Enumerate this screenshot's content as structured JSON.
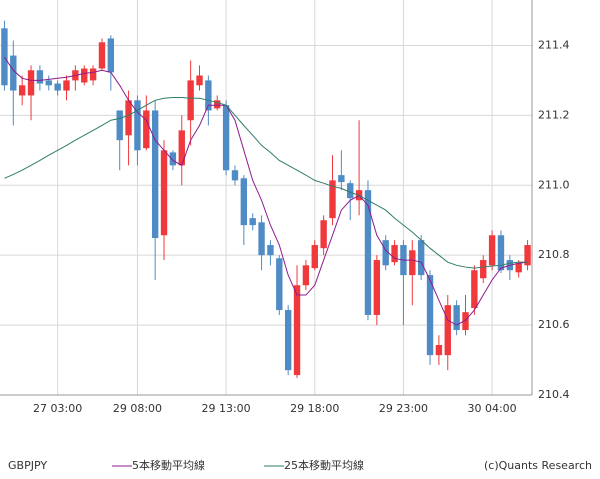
{
  "chart_data": {
    "type": "candlestick",
    "symbol": "GBPJPY",
    "credit": "(c)Quants Research",
    "categories": [
      null,
      null,
      null,
      null,
      null,
      null,
      "27 03:00",
      null,
      null,
      null,
      null,
      null,
      null,
      null,
      null,
      "29 08:00",
      null,
      null,
      null,
      null,
      null,
      null,
      null,
      null,
      null,
      "29 13:00",
      null,
      null,
      null,
      null,
      null,
      null,
      null,
      null,
      null,
      "29 18:00",
      null,
      null,
      null,
      null,
      null,
      null,
      null,
      null,
      null,
      "29 23:00",
      null,
      null,
      null,
      null,
      null,
      null,
      null,
      null,
      null,
      "30 04:00",
      null,
      null,
      null,
      null
    ],
    "open": [
      211.449,
      211.371,
      211.257,
      211.257,
      211.329,
      211.3,
      211.291,
      211.271,
      211.3,
      211.294,
      211.3,
      211.334,
      211.42,
      211.214,
      211.143,
      211.243,
      211.106,
      211.214,
      210.857,
      211.094,
      211.057,
      211.186,
      211.286,
      211.3,
      211.22,
      211.229,
      211.043,
      211.02,
      210.906,
      210.894,
      210.829,
      210.791,
      210.643,
      210.457,
      210.714,
      210.763,
      210.82,
      210.906,
      211.029,
      211.006,
      210.957,
      210.986,
      210.629,
      210.843,
      210.78,
      210.829,
      210.743,
      210.843,
      210.743,
      210.514,
      210.514,
      210.657,
      210.586,
      210.649,
      210.734,
      210.771,
      210.857,
      210.786,
      210.751,
      210.771
    ],
    "high": [
      211.471,
      211.414,
      211.314,
      211.343,
      211.343,
      211.314,
      211.3,
      211.314,
      211.343,
      211.343,
      211.343,
      211.42,
      211.429,
      211.214,
      211.271,
      211.257,
      211.257,
      211.243,
      211.129,
      211.1,
      211.2,
      211.357,
      211.343,
      211.314,
      211.257,
      211.243,
      211.057,
      211.029,
      210.92,
      210.914,
      210.843,
      210.8,
      210.657,
      210.771,
      210.786,
      210.843,
      210.914,
      211.086,
      211.1,
      211.014,
      211.186,
      211.014,
      210.8,
      210.857,
      210.843,
      210.843,
      210.843,
      210.857,
      210.757,
      210.571,
      210.686,
      210.671,
      210.686,
      210.771,
      210.8,
      210.871,
      210.871,
      210.8,
      210.786,
      210.843
    ],
    "low": [
      211.271,
      211.171,
      211.229,
      211.186,
      211.271,
      211.271,
      211.257,
      211.243,
      211.271,
      211.286,
      211.286,
      211.329,
      211.271,
      211.043,
      211.057,
      211.057,
      211.1,
      210.729,
      210.786,
      211.043,
      211.0,
      211.114,
      211.271,
      211.171,
      211.214,
      211.029,
      211.0,
      210.829,
      210.871,
      210.757,
      210.771,
      210.629,
      210.457,
      210.449,
      210.7,
      210.757,
      210.8,
      210.886,
      210.986,
      210.9,
      210.914,
      210.614,
      210.6,
      210.757,
      210.771,
      210.6,
      210.657,
      210.729,
      210.486,
      210.486,
      210.471,
      210.571,
      210.571,
      210.629,
      210.72,
      210.757,
      210.749,
      210.729,
      210.736,
      210.757
    ],
    "close": [
      211.286,
      211.271,
      211.286,
      211.329,
      211.291,
      211.286,
      211.271,
      211.3,
      211.329,
      211.334,
      211.334,
      211.409,
      211.323,
      211.129,
      211.243,
      211.1,
      211.214,
      210.849,
      211.1,
      211.057,
      211.157,
      211.3,
      211.314,
      211.214,
      211.243,
      211.043,
      211.014,
      210.886,
      210.886,
      210.8,
      210.8,
      210.643,
      210.471,
      210.714,
      210.771,
      210.829,
      210.9,
      211.014,
      211.009,
      210.963,
      210.986,
      210.629,
      210.786,
      210.771,
      210.829,
      210.743,
      210.814,
      210.743,
      210.514,
      210.543,
      210.657,
      210.586,
      210.637,
      210.757,
      210.786,
      210.857,
      210.757,
      210.757,
      210.777,
      210.829
    ],
    "up_color": "#f0393c",
    "down_color": "#4f8bc4",
    "series": [
      {
        "name": "5本移動平均線",
        "color": "#8e1b8e",
        "values": [
          211.366,
          211.329,
          211.306,
          211.3,
          211.3,
          211.303,
          211.306,
          211.309,
          211.314,
          211.32,
          211.323,
          211.329,
          211.323,
          211.286,
          211.243,
          211.209,
          211.186,
          211.129,
          211.1,
          211.071,
          211.057,
          211.129,
          211.171,
          211.229,
          211.229,
          211.229,
          211.186,
          211.1,
          211.014,
          210.957,
          210.886,
          210.829,
          210.743,
          210.686,
          210.686,
          210.714,
          210.786,
          210.857,
          210.929,
          210.957,
          210.971,
          210.943,
          210.857,
          210.814,
          210.791,
          210.786,
          210.786,
          210.78,
          210.729,
          210.671,
          210.614,
          210.6,
          210.614,
          210.643,
          210.686,
          210.729,
          210.763,
          210.771,
          210.777,
          210.78
        ]
      },
      {
        "name": "25本移動平均線",
        "color": "#2f7d6b",
        "values": [
          211.02,
          211.031,
          211.043,
          211.057,
          211.071,
          211.086,
          211.1,
          211.114,
          211.129,
          211.143,
          211.157,
          211.171,
          211.186,
          211.191,
          211.2,
          211.214,
          211.229,
          211.243,
          211.249,
          211.251,
          211.251,
          211.249,
          211.249,
          211.243,
          211.237,
          211.229,
          211.2,
          211.171,
          211.143,
          211.114,
          211.094,
          211.071,
          211.057,
          211.043,
          211.029,
          211.014,
          211.006,
          210.997,
          210.991,
          210.98,
          210.971,
          210.957,
          210.943,
          210.929,
          210.906,
          210.886,
          210.866,
          210.843,
          210.82,
          210.8,
          210.78,
          210.771,
          210.766,
          210.763,
          210.766,
          210.769,
          210.771,
          210.777,
          210.78,
          210.78
        ]
      }
    ],
    "ylim": [
      210.4,
      211.53
    ],
    "yticks": [
      210.4,
      210.6,
      210.8,
      {
        "value": 211,
        "label": "211.0"
      },
      211.2,
      211.4
    ],
    "grid": true
  }
}
